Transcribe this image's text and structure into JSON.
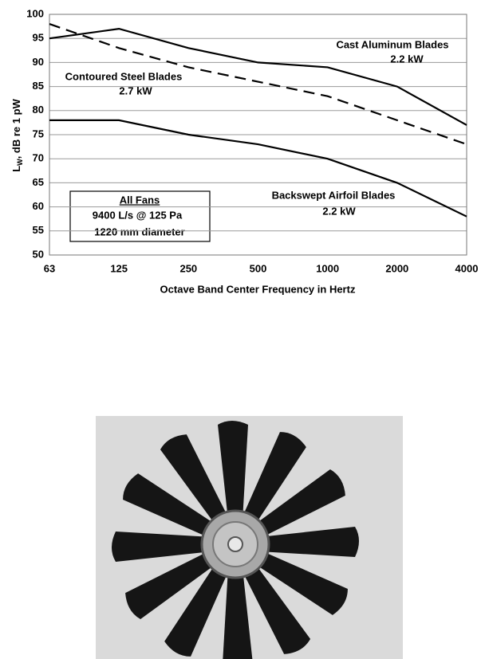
{
  "chart_data": {
    "type": "line",
    "xlabel": "Octave Band Center Frequency in Hertz",
    "ylabel": {
      "main": "L",
      "sub": "W",
      "rest": ", dB re 1 pW"
    },
    "categories": [
      "63",
      "125",
      "250",
      "500",
      "1000",
      "2000",
      "4000"
    ],
    "ylim": [
      50,
      100
    ],
    "yticks": [
      50,
      55,
      60,
      65,
      70,
      75,
      80,
      85,
      90,
      95,
      100
    ],
    "grid": true,
    "series": [
      {
        "name": "Cast Aluminum Blades",
        "power": "2.2 kW",
        "color": "#000000",
        "dash": false,
        "values": [
          95,
          97,
          93,
          90,
          89,
          85,
          77
        ]
      },
      {
        "name": "Contoured Steel Blades",
        "power": "2.7 kW",
        "color": "#000000",
        "dash": true,
        "values": [
          98,
          93,
          89,
          86,
          83,
          78,
          73
        ]
      },
      {
        "name": "Backswept Airfoil Blades",
        "power": "2.2 kW",
        "color": "#000000",
        "dash": false,
        "values": [
          78,
          78,
          75,
          73,
          70,
          65,
          58
        ]
      }
    ],
    "note": {
      "title": "All Fans",
      "lines": [
        "9400 L/s @ 125 Pa",
        "1220 mm diameter"
      ]
    }
  }
}
